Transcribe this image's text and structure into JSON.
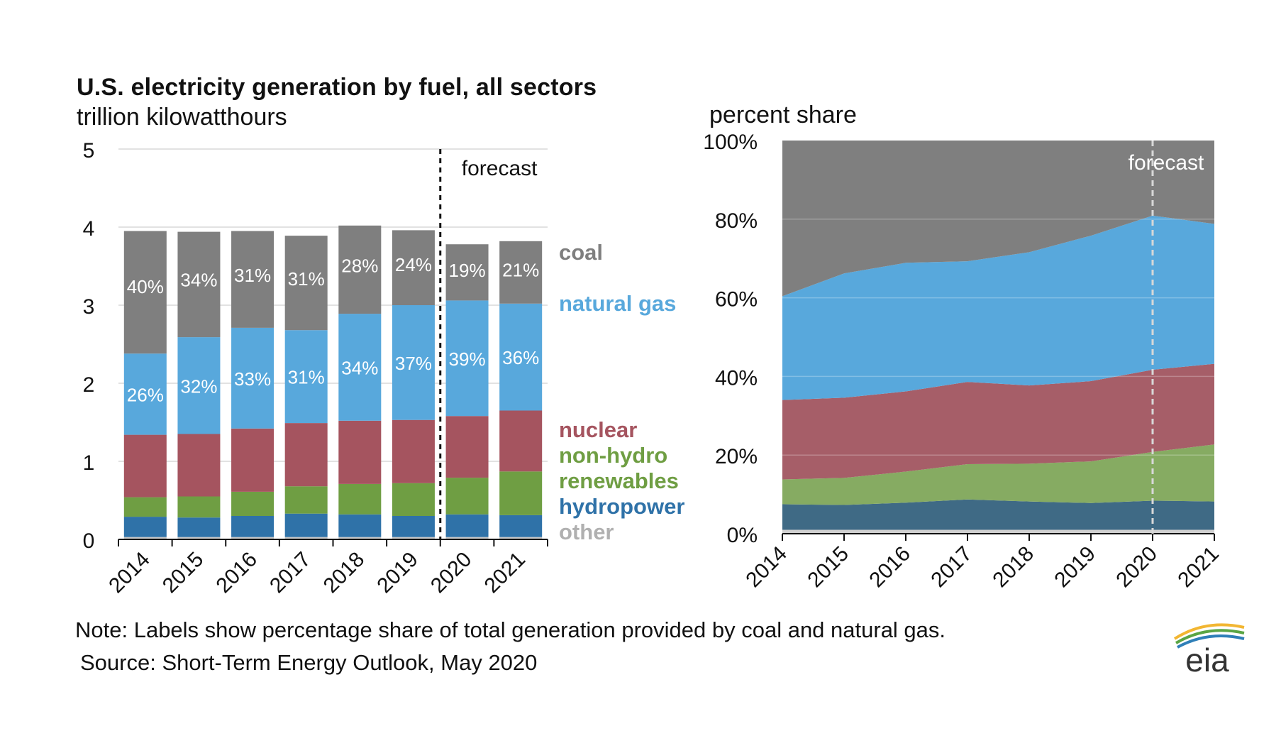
{
  "header": {
    "title": "U.S. electricity generation by fuel, all sectors",
    "left_unit": "trillion kilowatthours",
    "right_unit": "percent share"
  },
  "footer": {
    "note": "Note: Labels show percentage share of total generation provided by coal and natural gas.",
    "source": "Source: Short-Term Energy Outlook, May 2020",
    "logo_text": "eia"
  },
  "colors": {
    "coal": "#7f7f7f",
    "natural_gas": "#58a8dc",
    "nuclear": "#a5545f",
    "non_hydro_renewables": "#6f9e43",
    "hydropower": "#2f72a8",
    "other": "#c8c8c8",
    "area_coal": "#7f7f7f",
    "area_natural_gas": "#58a8dc",
    "area_nuclear": "#a65e68",
    "area_renewables": "#86ab62",
    "area_hydropower": "#3f6a85",
    "area_other": "#d0d0d0"
  },
  "chart_data": [
    {
      "type": "bar",
      "stacked": true,
      "categories": [
        "2014",
        "2015",
        "2016",
        "2017",
        "2018",
        "2019",
        "2020",
        "2021"
      ],
      "ylim": [
        0,
        5
      ],
      "yticks": [
        "0",
        "1",
        "2",
        "3",
        "4",
        "5"
      ],
      "grid": true,
      "forecast_label": "forecast",
      "forecast_after": "2019",
      "series": [
        {
          "key": "other",
          "name": "other",
          "values": [
            0.03,
            0.03,
            0.03,
            0.03,
            0.03,
            0.03,
            0.03,
            0.03
          ]
        },
        {
          "key": "hydropower",
          "name": "hydropower",
          "values": [
            0.26,
            0.25,
            0.27,
            0.3,
            0.29,
            0.27,
            0.29,
            0.28
          ]
        },
        {
          "key": "non_hydro_renewables",
          "name": "non-hydro renewables",
          "values": [
            0.25,
            0.27,
            0.31,
            0.35,
            0.39,
            0.42,
            0.47,
            0.56
          ]
        },
        {
          "key": "nuclear",
          "name": "nuclear",
          "values": [
            0.8,
            0.8,
            0.81,
            0.81,
            0.81,
            0.81,
            0.79,
            0.78
          ]
        },
        {
          "key": "natural_gas",
          "name": "natural gas",
          "values": [
            1.04,
            1.24,
            1.29,
            1.19,
            1.37,
            1.47,
            1.48,
            1.37
          ]
        },
        {
          "key": "coal",
          "name": "coal",
          "values": [
            1.57,
            1.35,
            1.24,
            1.21,
            1.13,
            0.96,
            0.72,
            0.8
          ]
        }
      ],
      "data_labels": {
        "coal": [
          "40%",
          "34%",
          "31%",
          "31%",
          "28%",
          "24%",
          "19%",
          "21%"
        ],
        "natural_gas": [
          "26%",
          "32%",
          "33%",
          "31%",
          "34%",
          "37%",
          "39%",
          "36%"
        ]
      },
      "legend": [
        "coal",
        "natural gas",
        "nuclear",
        "non-hydro",
        "renewables",
        "hydropower",
        "other"
      ]
    },
    {
      "type": "area",
      "stacked": true,
      "x": [
        "2014",
        "2015",
        "2016",
        "2017",
        "2018",
        "2019",
        "2020",
        "2021"
      ],
      "ylim": [
        0,
        100
      ],
      "yticks": [
        "0%",
        "20%",
        "40%",
        "60%",
        "80%",
        "100%"
      ],
      "grid": true,
      "forecast_label": "forecast",
      "forecast_at": "2020",
      "series": [
        {
          "key": "area_other",
          "values": [
            1,
            1,
            1,
            1,
            1,
            1,
            1,
            1
          ]
        },
        {
          "key": "area_hydropower",
          "values": [
            6.5,
            6.3,
            6.9,
            7.7,
            7.2,
            6.8,
            7.4,
            7.2
          ]
        },
        {
          "key": "area_renewables",
          "values": [
            6.3,
            6.9,
            7.9,
            9.0,
            9.6,
            10.6,
            12.4,
            14.5
          ]
        },
        {
          "key": "area_nuclear",
          "values": [
            20.2,
            20.4,
            20.4,
            20.9,
            19.9,
            20.4,
            20.9,
            20.5
          ]
        },
        {
          "key": "area_natural_gas",
          "values": [
            26.4,
            31.6,
            32.7,
            30.7,
            33.9,
            37.0,
            39.2,
            35.6
          ]
        },
        {
          "key": "area_coal",
          "values": [
            39.6,
            33.8,
            31.1,
            30.7,
            28.4,
            24.2,
            19.1,
            21.2
          ]
        }
      ]
    }
  ]
}
